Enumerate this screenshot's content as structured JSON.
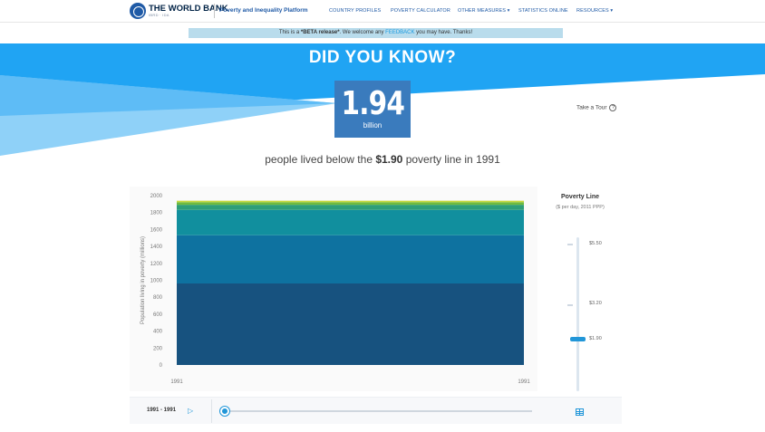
{
  "header": {
    "brand": "THE WORLD BANK",
    "brand_sub": "IBRD · IDA",
    "platform": "Poverty and Inequality Platform",
    "nav": [
      "COUNTRY PROFILES",
      "POVERTY CALCULATOR",
      "OTHER MEASURES ▾",
      "STATISTICS ONLINE",
      "RESOURCES ▾"
    ]
  },
  "beta": {
    "prefix": "This is a ",
    "bold": "*BETA release*",
    "middle": ". We welcome any ",
    "link": "FEEDBACK",
    "suffix": " you may have. Thanks!"
  },
  "hero": {
    "title": "DID YOU KNOW?",
    "stat_value": "1.94",
    "stat_unit": "billion",
    "sentence_prefix": "people lived below the ",
    "sentence_bold": "$1.90",
    "sentence_suffix": " poverty line in 1991",
    "tour": "Take a Tour",
    "tour_icon": "?"
  },
  "poverty_line": {
    "title": "Poverty Line",
    "subtitle": "($ per day, 2011 PPP)",
    "options": [
      "$5.50",
      "$3.20",
      "$1.90"
    ],
    "selected": "$1.90"
  },
  "timeline": {
    "range": "1991 - 1991",
    "play_icon": "play-icon",
    "table_icon": "table-icon",
    "progress": 0
  },
  "colors": {
    "hero_blue": "#20a4f3",
    "stat_box": "#3a7bbd",
    "accent": "#2196d8"
  },
  "chart_data": {
    "type": "area",
    "ylabel": "Population living in poverty (millions)",
    "xlabel": "",
    "x": [
      "1991",
      "1991"
    ],
    "yticks": [
      "0",
      "200",
      "400",
      "600",
      "800",
      "1000",
      "1200",
      "1400",
      "1600",
      "1800",
      "2000"
    ],
    "ylim": [
      0,
      2000
    ],
    "series": [
      {
        "values": [
          962,
          962
        ],
        "color": "#17527f"
      },
      {
        "values": [
          570,
          570
        ],
        "color": "#0e72a0"
      },
      {
        "values": [
          300,
          300
        ],
        "color": "#118f9e"
      },
      {
        "values": [
          60,
          60
        ],
        "color": "#2e9e78"
      },
      {
        "values": [
          30,
          30
        ],
        "color": "#6fba3e"
      },
      {
        "values": [
          18,
          18
        ],
        "color": "#c6d83a"
      }
    ]
  }
}
